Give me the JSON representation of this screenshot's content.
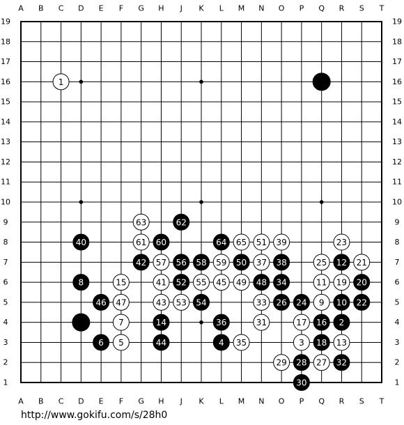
{
  "board": {
    "columns": [
      "A",
      "B",
      "C",
      "D",
      "E",
      "F",
      "G",
      "H",
      "J",
      "K",
      "L",
      "M",
      "N",
      "O",
      "P",
      "Q",
      "R",
      "S",
      "T"
    ],
    "rows": [
      19,
      18,
      17,
      16,
      15,
      14,
      13,
      12,
      11,
      10,
      9,
      8,
      7,
      6,
      5,
      4,
      3,
      2,
      1
    ],
    "stones": [
      {
        "col": "C",
        "row": 16,
        "color": "white",
        "label": "1"
      },
      {
        "col": "Q",
        "row": 16,
        "color": "black"
      },
      {
        "col": "D",
        "row": 4,
        "color": "black"
      },
      {
        "col": "R",
        "row": 4,
        "color": "black",
        "label": "2"
      },
      {
        "col": "P",
        "row": 3,
        "color": "white",
        "label": "3"
      },
      {
        "col": "L",
        "row": 3,
        "color": "black",
        "label": "4"
      },
      {
        "col": "F",
        "row": 3,
        "color": "white",
        "label": "5"
      },
      {
        "col": "E",
        "row": 3,
        "color": "black",
        "label": "6"
      },
      {
        "col": "F",
        "row": 4,
        "color": "white",
        "label": "7"
      },
      {
        "col": "D",
        "row": 6,
        "color": "black",
        "label": "8"
      },
      {
        "col": "Q",
        "row": 5,
        "color": "white",
        "label": "9"
      },
      {
        "col": "R",
        "row": 5,
        "color": "black",
        "label": "10"
      },
      {
        "col": "Q",
        "row": 6,
        "color": "white",
        "label": "11"
      },
      {
        "col": "R",
        "row": 7,
        "color": "black",
        "label": "12"
      },
      {
        "col": "R",
        "row": 3,
        "color": "white",
        "label": "13"
      },
      {
        "col": "H",
        "row": 4,
        "color": "black",
        "label": "14"
      },
      {
        "col": "F",
        "row": 6,
        "color": "white",
        "label": "15"
      },
      {
        "col": "Q",
        "row": 4,
        "color": "black",
        "label": "16"
      },
      {
        "col": "P",
        "row": 4,
        "color": "white",
        "label": "17"
      },
      {
        "col": "Q",
        "row": 3,
        "color": "black",
        "label": "18"
      },
      {
        "col": "R",
        "row": 6,
        "color": "white",
        "label": "19"
      },
      {
        "col": "S",
        "row": 6,
        "color": "black",
        "label": "20"
      },
      {
        "col": "S",
        "row": 7,
        "color": "white",
        "label": "21"
      },
      {
        "col": "S",
        "row": 5,
        "color": "black",
        "label": "22"
      },
      {
        "col": "R",
        "row": 8,
        "color": "white",
        "label": "23"
      },
      {
        "col": "P",
        "row": 5,
        "color": "black",
        "label": "24"
      },
      {
        "col": "Q",
        "row": 7,
        "color": "white",
        "label": "25"
      },
      {
        "col": "O",
        "row": 5,
        "color": "black",
        "label": "26"
      },
      {
        "col": "Q",
        "row": 2,
        "color": "white",
        "label": "27"
      },
      {
        "col": "P",
        "row": 2,
        "color": "black",
        "label": "28"
      },
      {
        "col": "O",
        "row": 2,
        "color": "white",
        "label": "29"
      },
      {
        "col": "P",
        "row": 1,
        "color": "black",
        "label": "30"
      },
      {
        "col": "N",
        "row": 4,
        "color": "white",
        "label": "31"
      },
      {
        "col": "R",
        "row": 2,
        "color": "black",
        "label": "32"
      },
      {
        "col": "N",
        "row": 5,
        "color": "white",
        "label": "33"
      },
      {
        "col": "O",
        "row": 6,
        "color": "black",
        "label": "34"
      },
      {
        "col": "M",
        "row": 3,
        "color": "white",
        "label": "35"
      },
      {
        "col": "L",
        "row": 4,
        "color": "black",
        "label": "36"
      },
      {
        "col": "N",
        "row": 7,
        "color": "white",
        "label": "37"
      },
      {
        "col": "O",
        "row": 7,
        "color": "black",
        "label": "38"
      },
      {
        "col": "O",
        "row": 8,
        "color": "white",
        "label": "39"
      },
      {
        "col": "D",
        "row": 8,
        "color": "black",
        "label": "40"
      },
      {
        "col": "H",
        "row": 6,
        "color": "white",
        "label": "41"
      },
      {
        "col": "G",
        "row": 7,
        "color": "black",
        "label": "42"
      },
      {
        "col": "H",
        "row": 5,
        "color": "white",
        "label": "43"
      },
      {
        "col": "H",
        "row": 3,
        "color": "black",
        "label": "44"
      },
      {
        "col": "L",
        "row": 6,
        "color": "white",
        "label": "45"
      },
      {
        "col": "E",
        "row": 5,
        "color": "black",
        "label": "46"
      },
      {
        "col": "F",
        "row": 5,
        "color": "white",
        "label": "47"
      },
      {
        "col": "N",
        "row": 6,
        "color": "black",
        "label": "48"
      },
      {
        "col": "M",
        "row": 6,
        "color": "white",
        "label": "49"
      },
      {
        "col": "M",
        "row": 7,
        "color": "black",
        "label": "50"
      },
      {
        "col": "N",
        "row": 8,
        "color": "white",
        "label": "51"
      },
      {
        "col": "J",
        "row": 6,
        "color": "black",
        "label": "52"
      },
      {
        "col": "J",
        "row": 5,
        "color": "white",
        "label": "53"
      },
      {
        "col": "K",
        "row": 5,
        "color": "black",
        "label": "54"
      },
      {
        "col": "K",
        "row": 6,
        "color": "white",
        "label": "55"
      },
      {
        "col": "J",
        "row": 7,
        "color": "black",
        "label": "56"
      },
      {
        "col": "H",
        "row": 7,
        "color": "white",
        "label": "57"
      },
      {
        "col": "K",
        "row": 7,
        "color": "black",
        "label": "58"
      },
      {
        "col": "L",
        "row": 7,
        "color": "white",
        "label": "59"
      },
      {
        "col": "H",
        "row": 8,
        "color": "black",
        "label": "60"
      },
      {
        "col": "G",
        "row": 8,
        "color": "white",
        "label": "61"
      },
      {
        "col": "J",
        "row": 9,
        "color": "black",
        "label": "62"
      },
      {
        "col": "G",
        "row": 9,
        "color": "white",
        "label": "63"
      },
      {
        "col": "L",
        "row": 8,
        "color": "black",
        "label": "64"
      },
      {
        "col": "M",
        "row": 8,
        "color": "white",
        "label": "65"
      }
    ]
  },
  "footer": {
    "url": "http://www.gokifu.com/s/28h0"
  }
}
